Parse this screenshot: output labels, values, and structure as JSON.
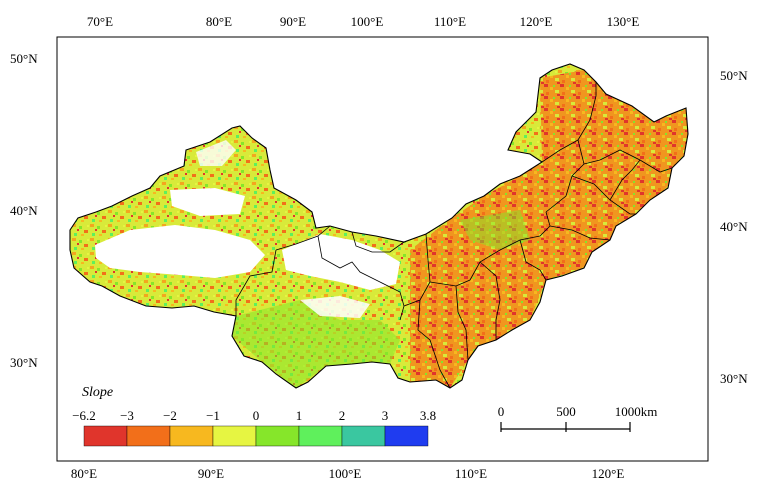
{
  "map": {
    "top_axis_labels": [
      "70°E",
      "80°E",
      "90°E",
      "100°E",
      "110°E",
      "120°E",
      "130°E"
    ],
    "bottom_axis_labels": [
      "80°E",
      "90°E",
      "100°E",
      "110°E",
      "120°E"
    ],
    "left_axis_labels": [
      "50°N",
      "40°N",
      "30°N"
    ],
    "right_axis_labels": [
      "50°N",
      "40°N",
      "30°N"
    ]
  },
  "legend": {
    "title": "Slope",
    "breaks": [
      "−6.2",
      "−3",
      "−2",
      "−1",
      "0",
      "1",
      "2",
      "3",
      "3.8"
    ],
    "colors": [
      "#e0352c",
      "#f26f1a",
      "#f7b81f",
      "#e6f542",
      "#86e62a",
      "#5ff05c",
      "#3ac7a0",
      "#1f3cf0"
    ]
  },
  "scale_bar": {
    "labels": [
      "0",
      "500",
      "1000km"
    ]
  }
}
